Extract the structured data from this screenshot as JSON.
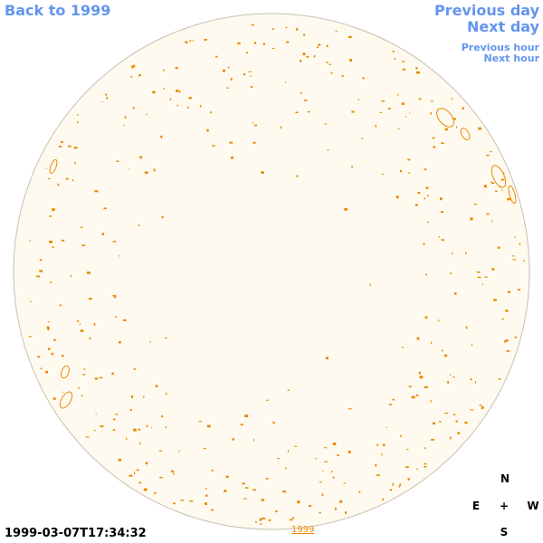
{
  "nav": {
    "back": "Back to 1999",
    "previous_day": "Previous day",
    "next_day": "Next day",
    "previous_hour": "Previous hour",
    "next_hour": "Next hour"
  },
  "timestamp": "1999-03-07T17:34:32",
  "year_link": "1999",
  "compass": {
    "north": "N",
    "east": "E",
    "center": "+",
    "west": "W",
    "south": "S"
  }
}
